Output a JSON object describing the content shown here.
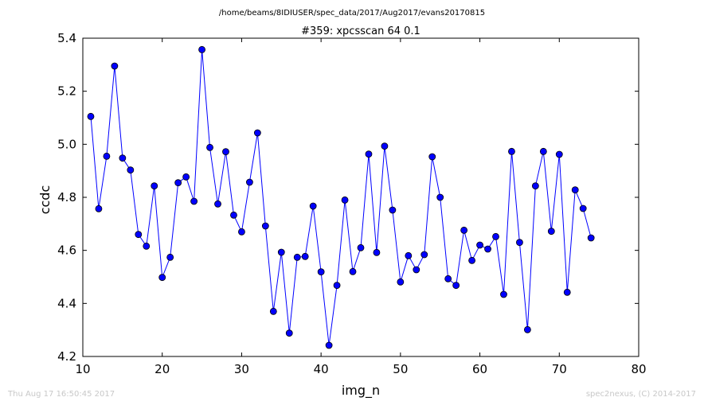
{
  "header": {
    "path": "/home/beams/8IDIUSER/spec_data/2017/Aug2017/evans20170815"
  },
  "footer": {
    "timestamp": "Thu Aug 17 16:50:45 2017",
    "credit": "spec2nexus, (C) 2014-2017"
  },
  "chart_data": {
    "type": "line",
    "title": "#359: xpcsscan 64 0.1",
    "xlabel": "img_n",
    "ylabel": "ccdc",
    "xlim": [
      10,
      80
    ],
    "ylim": [
      4.2,
      5.4
    ],
    "xticks": [
      10,
      20,
      30,
      40,
      50,
      60,
      70,
      80
    ],
    "yticks": [
      4.2,
      4.4,
      4.6,
      4.8,
      5.0,
      5.2,
      5.4
    ],
    "grid": false,
    "series_color": "#0000ff",
    "marker": "circle",
    "x": [
      11,
      12,
      13,
      14,
      15,
      16,
      17,
      18,
      19,
      20,
      21,
      22,
      23,
      24,
      25,
      26,
      27,
      28,
      29,
      30,
      31,
      32,
      33,
      34,
      35,
      36,
      37,
      38,
      39,
      40,
      41,
      42,
      43,
      44,
      45,
      46,
      47,
      48,
      49,
      50,
      51,
      52,
      53,
      54,
      55,
      56,
      57,
      58,
      59,
      60,
      61,
      62,
      63,
      64,
      65,
      66,
      67,
      68,
      69,
      70,
      71,
      72,
      73,
      74
    ],
    "y": [
      5.105,
      4.757,
      4.955,
      5.295,
      4.948,
      4.903,
      4.66,
      4.616,
      4.843,
      4.498,
      4.574,
      4.855,
      4.877,
      4.785,
      5.357,
      4.988,
      4.775,
      4.972,
      4.733,
      4.67,
      4.857,
      5.043,
      4.692,
      4.37,
      4.593,
      4.288,
      4.574,
      4.577,
      4.767,
      4.519,
      4.242,
      4.468,
      4.79,
      4.52,
      4.61,
      4.963,
      4.592,
      4.993,
      4.752,
      4.481,
      4.58,
      4.527,
      4.584,
      4.953,
      4.8,
      4.493,
      4.468,
      4.676,
      4.562,
      4.62,
      4.605,
      4.652,
      4.434,
      4.973,
      4.63,
      4.301,
      4.843,
      4.973,
      4.672,
      4.962,
      4.442,
      4.828,
      4.758,
      4.647
    ]
  }
}
